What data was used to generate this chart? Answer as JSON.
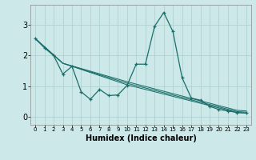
{
  "bg_color": "#cce8e8",
  "line_color": "#1a6e6a",
  "grid_color": "#aacece",
  "xlabel": "Humidex (Indice chaleur)",
  "xlabel_fontsize": 7,
  "xlim": [
    -0.5,
    23.5
  ],
  "ylim": [
    -0.25,
    3.65
  ],
  "yticks": [
    0,
    1,
    2,
    3
  ],
  "ytick_fontsize": 7,
  "xtick_fontsize": 5,
  "series": [
    {
      "x": [
        0,
        1,
        2,
        3,
        4,
        5,
        6,
        7,
        8,
        9,
        10,
        11,
        12,
        13,
        14,
        15,
        16,
        17,
        18,
        19,
        20,
        21,
        22,
        23
      ],
      "y": [
        2.55,
        2.25,
        2.0,
        1.4,
        1.65,
        0.82,
        0.58,
        0.9,
        0.7,
        0.72,
        1.03,
        1.72,
        1.72,
        2.95,
        3.4,
        2.78,
        1.28,
        0.62,
        0.55,
        0.35,
        0.25,
        0.2,
        0.15,
        0.13
      ],
      "marker": true,
      "linewidth": 0.9
    },
    {
      "x": [
        0,
        3,
        10,
        22,
        23
      ],
      "y": [
        2.55,
        1.75,
        1.05,
        0.15,
        0.13
      ],
      "marker": false,
      "linewidth": 0.75
    },
    {
      "x": [
        0,
        3,
        10,
        22,
        23
      ],
      "y": [
        2.55,
        1.75,
        1.1,
        0.18,
        0.16
      ],
      "marker": false,
      "linewidth": 0.75
    },
    {
      "x": [
        0,
        3,
        10,
        22,
        23
      ],
      "y": [
        2.55,
        1.75,
        1.15,
        0.22,
        0.2
      ],
      "marker": false,
      "linewidth": 0.75
    }
  ]
}
